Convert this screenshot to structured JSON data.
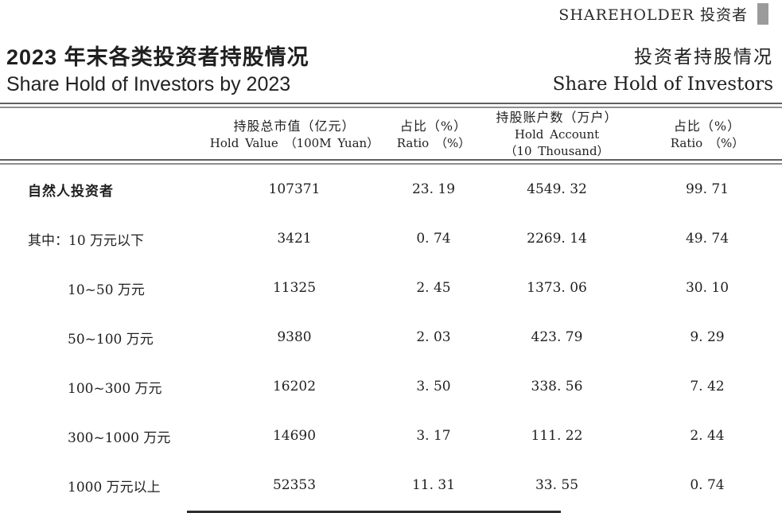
{
  "corner": {
    "label": "SHAREHOLDER 投资者",
    "bar_color": "#9b9b9b"
  },
  "title": {
    "left_zh": "2023 年末各类投资者持股情况",
    "left_en": "Share Hold of Investors by 2023",
    "right_zh": "投资者持股情况",
    "right_en": "Share Hold of Investors"
  },
  "table": {
    "columns": [
      {
        "zh": "持股总市值（亿元）",
        "en": "Hold Value （100M Yuan）"
      },
      {
        "zh": "占比（%）",
        "en": "Ratio （%）"
      },
      {
        "zh": "持股账户数（万户）",
        "en": "Hold Account",
        "en2": "（10 Thousand）"
      },
      {
        "zh": "占比（%）",
        "en": "Ratio （%）"
      }
    ],
    "rows": [
      {
        "label": "自然人投资者",
        "hold_value": "107371",
        "ratio1": "23. 19",
        "hold_account": "4549. 32",
        "ratio2": "99. 71"
      },
      {
        "label": "其中：10 万元以下",
        "hold_value": "3421",
        "ratio1": "0. 74",
        "hold_account": "2269. 14",
        "ratio2": "49. 74"
      },
      {
        "label": "10~50 万元",
        "hold_value": "11325",
        "ratio1": "2. 45",
        "hold_account": "1373. 06",
        "ratio2": "30. 10"
      },
      {
        "label": "50~100 万元",
        "hold_value": "9380",
        "ratio1": "2. 03",
        "hold_account": "423. 79",
        "ratio2": "9. 29"
      },
      {
        "label": "100~300 万元",
        "hold_value": "16202",
        "ratio1": "3. 50",
        "hold_account": "338. 56",
        "ratio2": "7. 42"
      },
      {
        "label": "300~1000 万元",
        "hold_value": "14690",
        "ratio1": "3. 17",
        "hold_account": "111. 22",
        "ratio2": "2. 44"
      },
      {
        "label": "1000 万元以上",
        "hold_value": "52353",
        "ratio1": "11. 31",
        "hold_account": "33. 55",
        "ratio2": "0. 74"
      }
    ]
  },
  "colors": {
    "text": "#1f1f1f",
    "rule_dark": "#5f5f5f",
    "rule_gray": "#8f8f8f",
    "corner_bar": "#9b9b9b"
  }
}
